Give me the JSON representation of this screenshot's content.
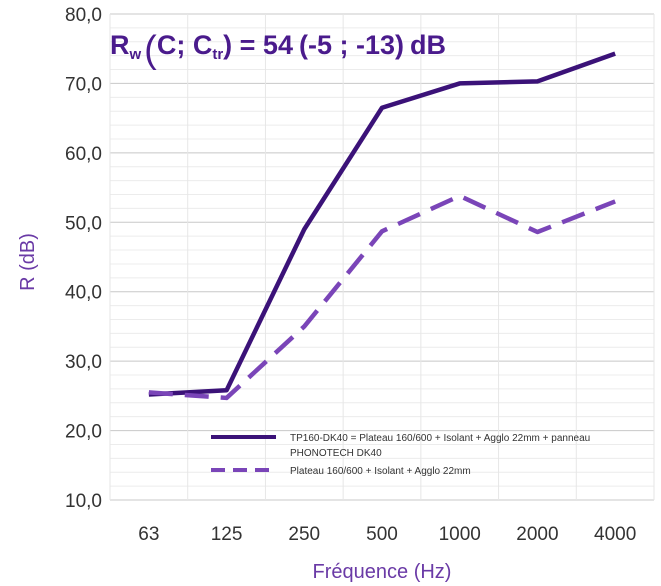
{
  "chart_data": {
    "type": "line",
    "title": "",
    "xlabel": "Fréquence (Hz)",
    "ylabel": "R (dB)",
    "categories": [
      "63",
      "125",
      "250",
      "500",
      "1000",
      "2000",
      "4000"
    ],
    "yticks": [
      "10,0",
      "20,0",
      "30,0",
      "40,0",
      "50,0",
      "60,0",
      "70,0",
      "80,0"
    ],
    "ylim": [
      10,
      80
    ],
    "grid": true,
    "legend_position": "bottom-right",
    "series": [
      {
        "name": "TP160-DK40 = Plateau 160/600 + Isolant + Agglo 22mm + panneau PHONOTECH DK40",
        "values": [
          25.2,
          25.8,
          49.0,
          66.5,
          70.0,
          70.3,
          74.3
        ],
        "color": "#3b1278",
        "style": "solid"
      },
      {
        "name": "Plateau 160/600 + Isolant + Agglo 22mm",
        "values": [
          25.5,
          24.7,
          35.0,
          48.7,
          53.8,
          48.6,
          53.0
        ],
        "color": "#7a45b8",
        "style": "dashed"
      }
    ],
    "legend_lines": [
      "TP160-DK40 = Plateau 160/600 + Isolant + Agglo 22mm + panneau",
      "PHONOTECH DK40",
      "Plateau 160/600 + Isolant + Agglo 22mm"
    ],
    "annotation": {
      "r_letter": "R",
      "r_sub": "w",
      "open_paren": "(",
      "c_part": "C; C",
      "c_sub": "tr",
      "eq_value": ") = 54",
      "corrections": "(-5 ; -13)",
      "unit": "dB"
    }
  }
}
